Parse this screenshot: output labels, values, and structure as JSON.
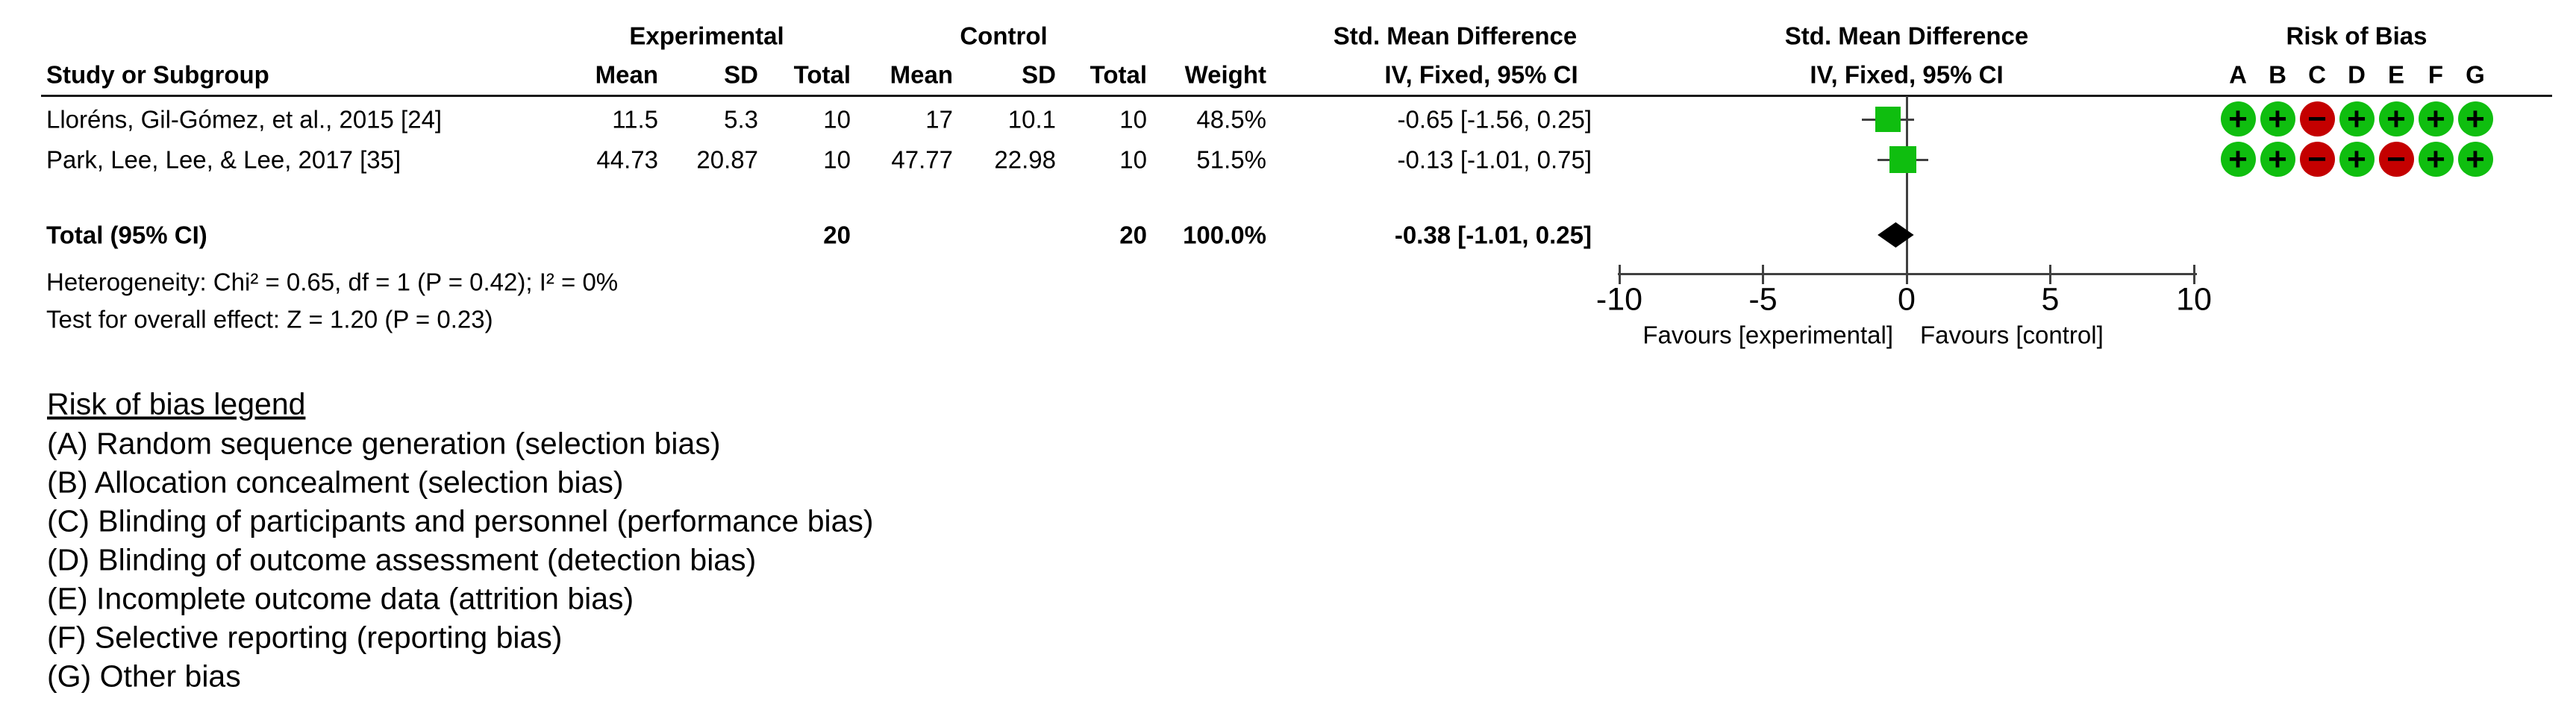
{
  "colors": {
    "green": "#0fbe0f",
    "red": "#c40000",
    "diamond": "#000000",
    "text": "#000000"
  },
  "table": {
    "header": {
      "exp_group": "Experimental",
      "ctrl_group": "Control",
      "smd_col": "Std. Mean Difference",
      "smd_plot": "Std. Mean Difference",
      "rob": "Risk of Bias",
      "study": "Study or Subgroup",
      "mean": "Mean",
      "sd": "SD",
      "total": "Total",
      "mean2": "Mean",
      "sd2": "SD",
      "total2": "Total",
      "weight": "Weight",
      "ci_method": "IV, Fixed, 95% CI",
      "ci_method_plot": "IV, Fixed, 95% CI",
      "rob_letters": [
        "A",
        "B",
        "C",
        "D",
        "E",
        "F",
        "G"
      ]
    },
    "rows": [
      {
        "name": "Lloréns, Gil-Gómez, et al., 2015 [24]",
        "mean": "11.5",
        "sd": "5.3",
        "total": "10",
        "c_mean": "17",
        "c_sd": "10.1",
        "c_total": "10",
        "weight": "48.5%",
        "ci": "-0.65 [-1.56, 0.25]",
        "bias": [
          "+",
          "+",
          "-",
          "+",
          "+",
          "+",
          "+"
        ]
      },
      {
        "name": "Park, Lee, Lee, & Lee, 2017 [35]",
        "mean": "44.73",
        "sd": "20.87",
        "total": "10",
        "c_mean": "47.77",
        "c_sd": "22.98",
        "c_total": "10",
        "weight": "51.5%",
        "ci": "-0.13 [-1.01, 0.75]",
        "bias": [
          "+",
          "+",
          "-",
          "+",
          "-",
          "+",
          "+"
        ]
      }
    ],
    "total_row": {
      "label": "Total (95% CI)",
      "total": "20",
      "c_total": "20",
      "weight": "100.0%",
      "ci": "-0.38 [-1.01, 0.25]"
    },
    "footnotes": {
      "heterogeneity": "Heterogeneity: Chi² = 0.65, df = 1 (P = 0.42); I² = 0%",
      "overall_effect": "Test for overall effect: Z = 1.20 (P = 0.23)"
    }
  },
  "chart_data": {
    "type": "forest",
    "effect_measure": "Std. Mean Difference",
    "method": "IV, Fixed, 95% CI",
    "axis": {
      "min": -10,
      "max": 10,
      "ticks": [
        -10,
        -5,
        0,
        5,
        10
      ]
    },
    "xlabel_left": "Favours [experimental]",
    "xlabel_right": "Favours [control]",
    "studies": [
      {
        "name": "Lloréns, Gil-Gómez, et al., 2015 [24]",
        "smd": -0.65,
        "ci_low": -1.56,
        "ci_high": 0.25,
        "weight_pct": 48.5
      },
      {
        "name": "Park, Lee, Lee, & Lee, 2017 [35]",
        "smd": -0.13,
        "ci_low": -1.01,
        "ci_high": 0.75,
        "weight_pct": 51.5
      }
    ],
    "total": {
      "smd": -0.38,
      "ci_low": -1.01,
      "ci_high": 0.25
    }
  },
  "legend": {
    "title": "Risk of bias legend",
    "items": [
      "(A) Random sequence generation (selection bias)",
      "(B) Allocation concealment (selection bias)",
      "(C) Blinding of participants and personnel (performance bias)",
      "(D) Blinding of outcome assessment (detection bias)",
      "(E) Incomplete outcome data (attrition bias)",
      "(F) Selective reporting (reporting bias)",
      "(G) Other bias"
    ]
  }
}
